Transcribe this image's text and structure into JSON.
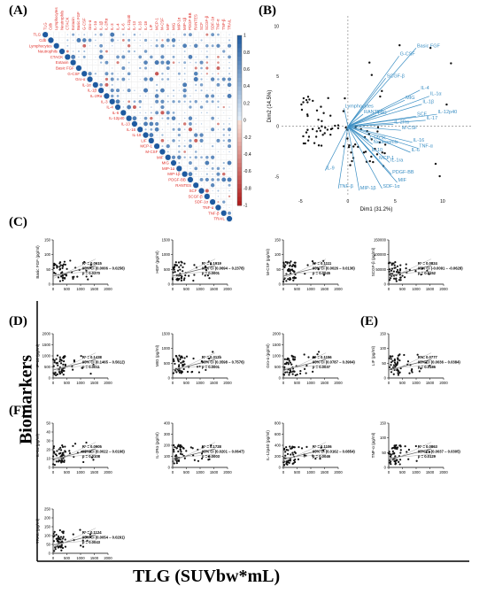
{
  "panel_letters": {
    "A": "(A)",
    "B": "(B)",
    "C": "(C)",
    "D": "(D)",
    "E": "(E)",
    "F": "(F)"
  },
  "axis_big": {
    "y": "Biomarkers",
    "x": "TLG (SUVbw*mL)"
  },
  "colors": {
    "positive": "#1f5f9e",
    "negative": "#b0191e",
    "label_red": "#e0302a",
    "biplot": "#3b8fc4"
  },
  "chart_data": [
    {
      "type": "heatmap",
      "variables": [
        "TLG",
        "Cdb",
        "Lymphocytes",
        "Neutrophils",
        "CTACK",
        "Eotaxin",
        "Basic FGF",
        "G-CSF",
        "Gro-α",
        "IL-1α",
        "IL-1β",
        "IL-2Rα",
        "IL-3",
        "IL-4",
        "IL-6",
        "IL-12p40",
        "IL-13",
        "IL-16",
        "IL-18",
        "LIF",
        "MCP-1",
        "M-CSF",
        "MIF",
        "MIG",
        "MIP-1α",
        "MIP-1β",
        "PDGF-BB",
        "RANTES",
        "SCF",
        "SCGF-β",
        "SDF-1α",
        "TNF-α",
        "TNF-β",
        "TRAIL"
      ],
      "scale": {
        "ticks": [
          "1",
          "0.8",
          "0.6",
          "0.4",
          "0.2",
          "0",
          "-0.2",
          "-0.4",
          "-0.6",
          "-0.8",
          "-1"
        ],
        "min": -1,
        "max": 1
      }
    },
    {
      "type": "scatter",
      "title": "",
      "xlabel": "Dim1 (31.2%)",
      "ylabel": "Dim2 (14.5%)",
      "xticks": [
        "-5",
        "0",
        "5",
        "10"
      ],
      "yticks": [
        "10",
        "5",
        "0",
        "-5"
      ],
      "xlim": [
        -7,
        13
      ],
      "ylim": [
        -7,
        11
      ],
      "arrows": [
        {
          "label": "Basic FGF",
          "x": 7.2,
          "y": 7.8
        },
        {
          "label": "G-CSF",
          "x": 5.4,
          "y": 7.0
        },
        {
          "label": "SCGF-β",
          "x": 4.0,
          "y": 4.8
        },
        {
          "label": "IL-4",
          "x": 7.6,
          "y": 3.6
        },
        {
          "label": "IL-1α",
          "x": 8.6,
          "y": 3.0
        },
        {
          "label": "MIG",
          "x": 6.0,
          "y": 2.6
        },
        {
          "label": "IL-1β",
          "x": 7.8,
          "y": 2.2
        },
        {
          "label": "Lymphocytes",
          "x": -0.4,
          "y": 1.8
        },
        {
          "label": "RANTES",
          "x": 1.6,
          "y": 1.2
        },
        {
          "label": "TLG",
          "x": 3.0,
          "y": 1.1
        },
        {
          "label": "SCF",
          "x": 7.2,
          "y": 1.0
        },
        {
          "label": "IL-17",
          "x": 8.2,
          "y": 0.6
        },
        {
          "label": "IL-12p40",
          "x": 9.4,
          "y": 1.2
        },
        {
          "label": "IL-2Rα",
          "x": 4.8,
          "y": 0.2
        },
        {
          "label": "M-CSF",
          "x": 5.6,
          "y": -0.4
        },
        {
          "label": "CTACK",
          "x": 2.2,
          "y": -1.4
        },
        {
          "label": "Neutrophils",
          "x": 2.6,
          "y": -1.8
        },
        {
          "label": "IL-10",
          "x": 2.4,
          "y": -2.6
        },
        {
          "label": "IL-16",
          "x": 6.8,
          "y": -1.6
        },
        {
          "label": "TNF-α",
          "x": 7.4,
          "y": -2.2
        },
        {
          "label": "IL-6",
          "x": 6.6,
          "y": -2.6
        },
        {
          "label": "MCP-1",
          "x": 3.2,
          "y": -3.4
        },
        {
          "label": "IL-1ra",
          "x": 4.4,
          "y": -3.6
        },
        {
          "label": "PDGF-BB",
          "x": 4.6,
          "y": -4.8
        },
        {
          "label": "MIF",
          "x": 5.2,
          "y": -5.6
        },
        {
          "label": "IL-9",
          "x": -2.4,
          "y": -4.4
        },
        {
          "label": "TNF-β",
          "x": -1.0,
          "y": -6.2
        },
        {
          "label": "MIP-1β",
          "x": 1.2,
          "y": -6.4
        },
        {
          "label": "SDF-1α",
          "x": 3.6,
          "y": -6.2
        }
      ]
    },
    {
      "type": "scatter",
      "ylabel": "Basic FGF (pg/ml)",
      "yticks": [
        "150",
        "100",
        "50",
        "0"
      ],
      "ylim": [
        0,
        150
      ],
      "xticks": [
        "0",
        "500",
        "1000",
        "1500",
        "2000"
      ],
      "xlim": [
        0,
        2000
      ],
      "stats": [
        "R² = 0.0615",
        "95% CI (0.0006 – 0.0256)",
        "p = 0.0370"
      ]
    },
    {
      "type": "scatter",
      "ylabel": "HGF (pg/ml)",
      "yticks": [
        "1500",
        "1000",
        "500",
        "0"
      ],
      "ylim": [
        0,
        1500
      ],
      "xticks": [
        "0",
        "500",
        "1000",
        "1500",
        "2000"
      ],
      "xlim": [
        0,
        2000
      ],
      "stats": [
        "R² = 0.1919",
        "95% CI (0.0694 – 0.2378)",
        "p = 0.0001"
      ]
    },
    {
      "type": "scatter",
      "ylabel": "M-CSF (pg/ml)",
      "yticks": [
        "150",
        "100",
        "50",
        "0"
      ],
      "ylim": [
        0,
        150
      ],
      "xticks": [
        "0",
        "500",
        "1000",
        "1500",
        "2000"
      ],
      "xlim": [
        0,
        2000
      ],
      "stats": [
        "R² = 0.1111",
        "95% CI (0.0026 – 0.0136)",
        "p = 0.0045"
      ]
    },
    {
      "type": "scatter",
      "ylabel": "SCGF-β (pg/ml)",
      "yticks": [
        "150000",
        "100000",
        "50000",
        "0"
      ],
      "ylim": [
        0,
        150000
      ],
      "xticks": [
        "0",
        "500",
        "1000",
        "1500",
        "2000"
      ],
      "xlim": [
        0,
        2000
      ],
      "stats": [
        "R² = 0.0824",
        "95% CI (-0.0091 – -0.0628)",
        "p = 0.0152"
      ]
    },
    {
      "type": "scatter",
      "ylabel": "IP-10 (pg/ml)",
      "yticks": [
        "2000",
        "1500",
        "1000",
        "500",
        "0"
      ],
      "ylim": [
        0,
        2000
      ],
      "xticks": [
        "0",
        "500",
        "1000",
        "1500",
        "2000"
      ],
      "xlim": [
        0,
        2000
      ],
      "stats": [
        "R² = 0.1438",
        "95% CI (0.1465 – 0.5612)",
        "p = 0.0011"
      ]
    },
    {
      "type": "scatter",
      "ylabel": "MIG (pg/ml)",
      "yticks": [
        "1500",
        "1000",
        "500",
        "0"
      ],
      "ylim": [
        0,
        1500
      ],
      "xticks": [
        "0",
        "500",
        "1000",
        "1500",
        "2000"
      ],
      "xlim": [
        0,
        2000
      ],
      "stats": [
        "R² = 0.312b",
        "95% CI (0.3598 – 0.7576)",
        "p = 0.0001"
      ]
    },
    {
      "type": "scatter",
      "ylabel": "Gro-α (pg/ml)",
      "yticks": [
        "2000",
        "1500",
        "1000",
        "500",
        "0"
      ],
      "ylim": [
        0,
        2000
      ],
      "xticks": [
        "0",
        "500",
        "1000",
        "1500",
        "2000"
      ],
      "xlim": [
        0,
        2000
      ],
      "stats": [
        "R² = 0.1156",
        "95% CI (0.0787 – 0.3904)",
        "p = 0.0037"
      ]
    },
    {
      "type": "scatter",
      "ylabel": "LIF (pg/ml)",
      "yticks": [
        "150",
        "100",
        "50",
        "0"
      ],
      "ylim": [
        0,
        150
      ],
      "xticks": [
        "0",
        "500",
        "1000",
        "1500",
        "2000"
      ],
      "xlim": [
        0,
        2000
      ],
      "stats": [
        "R² = 0.0777",
        "95% CI (0.0036 – 0.0384)",
        "p = 0.0186"
      ]
    },
    {
      "type": "scatter",
      "ylabel": "IL-1α (pg/ml)",
      "yticks": [
        "50",
        "40",
        "30",
        "20",
        "10",
        "0"
      ],
      "ylim": [
        0,
        50
      ],
      "xticks": [
        "0",
        "500",
        "1000",
        "1500",
        "2000"
      ],
      "xlim": [
        0,
        2000
      ],
      "stats": [
        "R² = 0.0905",
        "95% CI (0.0022 – 0.0166)",
        "p = 0.0108"
      ]
    },
    {
      "type": "scatter",
      "ylabel": "IL-2Rα (pg/ml)",
      "yticks": [
        "400",
        "300",
        "200",
        "100",
        "0"
      ],
      "ylim": [
        0,
        400
      ],
      "xticks": [
        "0",
        "500",
        "1000",
        "1500",
        "2000"
      ],
      "xlim": [
        0,
        2000
      ],
      "stats": [
        "R² = 0.1728",
        "95% CI (0.0201 – 0.0647)",
        "p = 0.0003"
      ]
    },
    {
      "type": "scatter",
      "ylabel": "IL-12p40 (pg/ml)",
      "yticks": [
        "800",
        "600",
        "400",
        "200",
        "0"
      ],
      "ylim": [
        0,
        800
      ],
      "xticks": [
        "0",
        "500",
        "1000",
        "1500",
        "2000"
      ],
      "xlim": [
        0,
        2000
      ],
      "stats": [
        "R² = 0.1106",
        "95% CI (0.0162 – 0.0854)",
        "p = 0.0046"
      ]
    },
    {
      "type": "scatter",
      "ylabel": "TNF-α (pg/ml)",
      "yticks": [
        "150",
        "100",
        "50",
        "0"
      ],
      "ylim": [
        0,
        150
      ],
      "xticks": [
        "0",
        "500",
        "1000",
        "1500",
        "2000"
      ],
      "xlim": [
        0,
        2000
      ],
      "stats": [
        "R² = 0.0863",
        "95% CI (0.0037 – 0.0305)",
        "p = 0.0129"
      ]
    },
    {
      "type": "scatter",
      "ylabel": "TRAIL (pg/ml)",
      "yticks": [
        "250",
        "200",
        "150",
        "100",
        "50",
        "0"
      ],
      "ylim": [
        0,
        250
      ],
      "xticks": [
        "0",
        "500",
        "1000",
        "1500",
        "2000"
      ],
      "xlim": [
        0,
        2000
      ],
      "stats": [
        "R² = 0.1124",
        "95% CI (0.0054 – 0.0291)",
        "p = 0.0043"
      ]
    }
  ]
}
